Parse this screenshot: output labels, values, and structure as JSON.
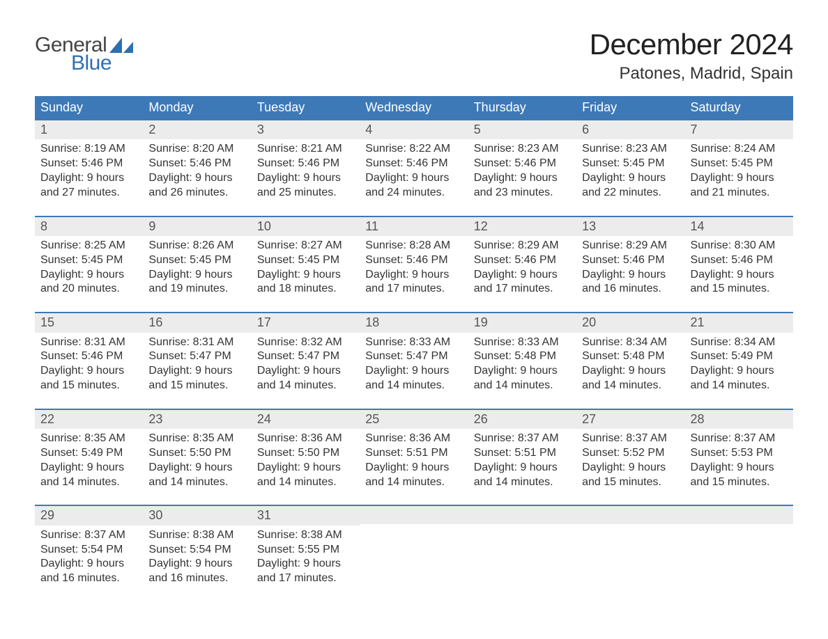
{
  "logo": {
    "text1": "General",
    "text2": "Blue",
    "text1_color": "#444444",
    "text2_color": "#2f6fb0",
    "sail_color": "#2f6fb0"
  },
  "title": "December 2024",
  "location": "Patones, Madrid, Spain",
  "colors": {
    "header_bg": "#3d79b7",
    "header_text": "#ffffff",
    "row_rule": "#3d79b7",
    "daynum_bg": "#ececec",
    "body_text": "#333333",
    "page_bg": "#ffffff"
  },
  "day_headers": [
    "Sunday",
    "Monday",
    "Tuesday",
    "Wednesday",
    "Thursday",
    "Friday",
    "Saturday"
  ],
  "weeks": [
    [
      {
        "n": "1",
        "sr": "Sunrise: 8:19 AM",
        "ss": "Sunset: 5:46 PM",
        "d1": "Daylight: 9 hours",
        "d2": "and 27 minutes."
      },
      {
        "n": "2",
        "sr": "Sunrise: 8:20 AM",
        "ss": "Sunset: 5:46 PM",
        "d1": "Daylight: 9 hours",
        "d2": "and 26 minutes."
      },
      {
        "n": "3",
        "sr": "Sunrise: 8:21 AM",
        "ss": "Sunset: 5:46 PM",
        "d1": "Daylight: 9 hours",
        "d2": "and 25 minutes."
      },
      {
        "n": "4",
        "sr": "Sunrise: 8:22 AM",
        "ss": "Sunset: 5:46 PM",
        "d1": "Daylight: 9 hours",
        "d2": "and 24 minutes."
      },
      {
        "n": "5",
        "sr": "Sunrise: 8:23 AM",
        "ss": "Sunset: 5:46 PM",
        "d1": "Daylight: 9 hours",
        "d2": "and 23 minutes."
      },
      {
        "n": "6",
        "sr": "Sunrise: 8:23 AM",
        "ss": "Sunset: 5:45 PM",
        "d1": "Daylight: 9 hours",
        "d2": "and 22 minutes."
      },
      {
        "n": "7",
        "sr": "Sunrise: 8:24 AM",
        "ss": "Sunset: 5:45 PM",
        "d1": "Daylight: 9 hours",
        "d2": "and 21 minutes."
      }
    ],
    [
      {
        "n": "8",
        "sr": "Sunrise: 8:25 AM",
        "ss": "Sunset: 5:45 PM",
        "d1": "Daylight: 9 hours",
        "d2": "and 20 minutes."
      },
      {
        "n": "9",
        "sr": "Sunrise: 8:26 AM",
        "ss": "Sunset: 5:45 PM",
        "d1": "Daylight: 9 hours",
        "d2": "and 19 minutes."
      },
      {
        "n": "10",
        "sr": "Sunrise: 8:27 AM",
        "ss": "Sunset: 5:45 PM",
        "d1": "Daylight: 9 hours",
        "d2": "and 18 minutes."
      },
      {
        "n": "11",
        "sr": "Sunrise: 8:28 AM",
        "ss": "Sunset: 5:46 PM",
        "d1": "Daylight: 9 hours",
        "d2": "and 17 minutes."
      },
      {
        "n": "12",
        "sr": "Sunrise: 8:29 AM",
        "ss": "Sunset: 5:46 PM",
        "d1": "Daylight: 9 hours",
        "d2": "and 17 minutes."
      },
      {
        "n": "13",
        "sr": "Sunrise: 8:29 AM",
        "ss": "Sunset: 5:46 PM",
        "d1": "Daylight: 9 hours",
        "d2": "and 16 minutes."
      },
      {
        "n": "14",
        "sr": "Sunrise: 8:30 AM",
        "ss": "Sunset: 5:46 PM",
        "d1": "Daylight: 9 hours",
        "d2": "and 15 minutes."
      }
    ],
    [
      {
        "n": "15",
        "sr": "Sunrise: 8:31 AM",
        "ss": "Sunset: 5:46 PM",
        "d1": "Daylight: 9 hours",
        "d2": "and 15 minutes."
      },
      {
        "n": "16",
        "sr": "Sunrise: 8:31 AM",
        "ss": "Sunset: 5:47 PM",
        "d1": "Daylight: 9 hours",
        "d2": "and 15 minutes."
      },
      {
        "n": "17",
        "sr": "Sunrise: 8:32 AM",
        "ss": "Sunset: 5:47 PM",
        "d1": "Daylight: 9 hours",
        "d2": "and 14 minutes."
      },
      {
        "n": "18",
        "sr": "Sunrise: 8:33 AM",
        "ss": "Sunset: 5:47 PM",
        "d1": "Daylight: 9 hours",
        "d2": "and 14 minutes."
      },
      {
        "n": "19",
        "sr": "Sunrise: 8:33 AM",
        "ss": "Sunset: 5:48 PM",
        "d1": "Daylight: 9 hours",
        "d2": "and 14 minutes."
      },
      {
        "n": "20",
        "sr": "Sunrise: 8:34 AM",
        "ss": "Sunset: 5:48 PM",
        "d1": "Daylight: 9 hours",
        "d2": "and 14 minutes."
      },
      {
        "n": "21",
        "sr": "Sunrise: 8:34 AM",
        "ss": "Sunset: 5:49 PM",
        "d1": "Daylight: 9 hours",
        "d2": "and 14 minutes."
      }
    ],
    [
      {
        "n": "22",
        "sr": "Sunrise: 8:35 AM",
        "ss": "Sunset: 5:49 PM",
        "d1": "Daylight: 9 hours",
        "d2": "and 14 minutes."
      },
      {
        "n": "23",
        "sr": "Sunrise: 8:35 AM",
        "ss": "Sunset: 5:50 PM",
        "d1": "Daylight: 9 hours",
        "d2": "and 14 minutes."
      },
      {
        "n": "24",
        "sr": "Sunrise: 8:36 AM",
        "ss": "Sunset: 5:50 PM",
        "d1": "Daylight: 9 hours",
        "d2": "and 14 minutes."
      },
      {
        "n": "25",
        "sr": "Sunrise: 8:36 AM",
        "ss": "Sunset: 5:51 PM",
        "d1": "Daylight: 9 hours",
        "d2": "and 14 minutes."
      },
      {
        "n": "26",
        "sr": "Sunrise: 8:37 AM",
        "ss": "Sunset: 5:51 PM",
        "d1": "Daylight: 9 hours",
        "d2": "and 14 minutes."
      },
      {
        "n": "27",
        "sr": "Sunrise: 8:37 AM",
        "ss": "Sunset: 5:52 PM",
        "d1": "Daylight: 9 hours",
        "d2": "and 15 minutes."
      },
      {
        "n": "28",
        "sr": "Sunrise: 8:37 AM",
        "ss": "Sunset: 5:53 PM",
        "d1": "Daylight: 9 hours",
        "d2": "and 15 minutes."
      }
    ],
    [
      {
        "n": "29",
        "sr": "Sunrise: 8:37 AM",
        "ss": "Sunset: 5:54 PM",
        "d1": "Daylight: 9 hours",
        "d2": "and 16 minutes."
      },
      {
        "n": "30",
        "sr": "Sunrise: 8:38 AM",
        "ss": "Sunset: 5:54 PM",
        "d1": "Daylight: 9 hours",
        "d2": "and 16 minutes."
      },
      {
        "n": "31",
        "sr": "Sunrise: 8:38 AM",
        "ss": "Sunset: 5:55 PM",
        "d1": "Daylight: 9 hours",
        "d2": "and 17 minutes."
      },
      null,
      null,
      null,
      null
    ]
  ]
}
